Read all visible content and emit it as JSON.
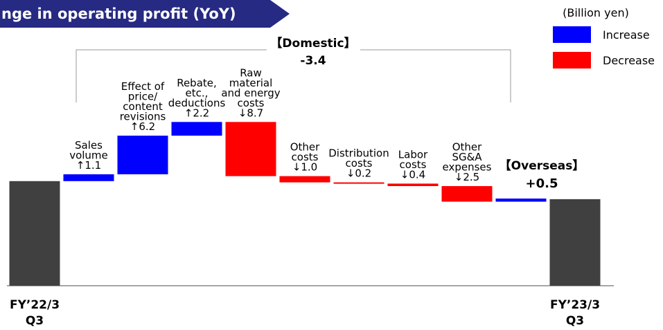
{
  "chart_data": {
    "type": "waterfall",
    "title": "nge in operating profit (YoY)",
    "unit": "(Billion yen)",
    "legend": {
      "increase": "Increase",
      "decrease": "Decrease",
      "corner": "top-right"
    },
    "colors": {
      "increase": "#0000ff",
      "decrease": "#ff0000",
      "total": "#404040"
    },
    "categories": [
      [
        "FY’22/3",
        "Q3"
      ],
      [
        "Sales",
        "volume"
      ],
      [
        "Effect of",
        "price/",
        "content",
        "revisions"
      ],
      [
        "Rebate,",
        "etc.,",
        "deductions"
      ],
      [
        "Raw",
        "material",
        "and energy",
        "costs"
      ],
      [
        "Other",
        "costs"
      ],
      [
        "Distribution",
        "costs"
      ],
      [
        "Labor",
        "costs"
      ],
      [
        "Other",
        "SG&A",
        "expenses"
      ],
      [
        "【Overseas】"
      ],
      [
        "FY’23/3",
        "Q3"
      ]
    ],
    "measures": [
      "total",
      "relative",
      "relative",
      "relative",
      "relative",
      "relative",
      "relative",
      "relative",
      "relative",
      "relative",
      "total"
    ],
    "values": [
      16.8,
      1.1,
      6.2,
      2.2,
      -8.7,
      -1.0,
      -0.2,
      -0.4,
      -2.5,
      0.5,
      13.9
    ],
    "value_labels": [
      null,
      "↑1.1",
      "↑6.2",
      "↑2.2",
      "↓8.7",
      "↓1.0",
      "↓0.2",
      "↓0.4",
      "↓2.5",
      "+0.5",
      null
    ],
    "annotations": [
      {
        "label": "【Domestic】",
        "value": -3.4,
        "value_label": "-3.4"
      }
    ]
  }
}
